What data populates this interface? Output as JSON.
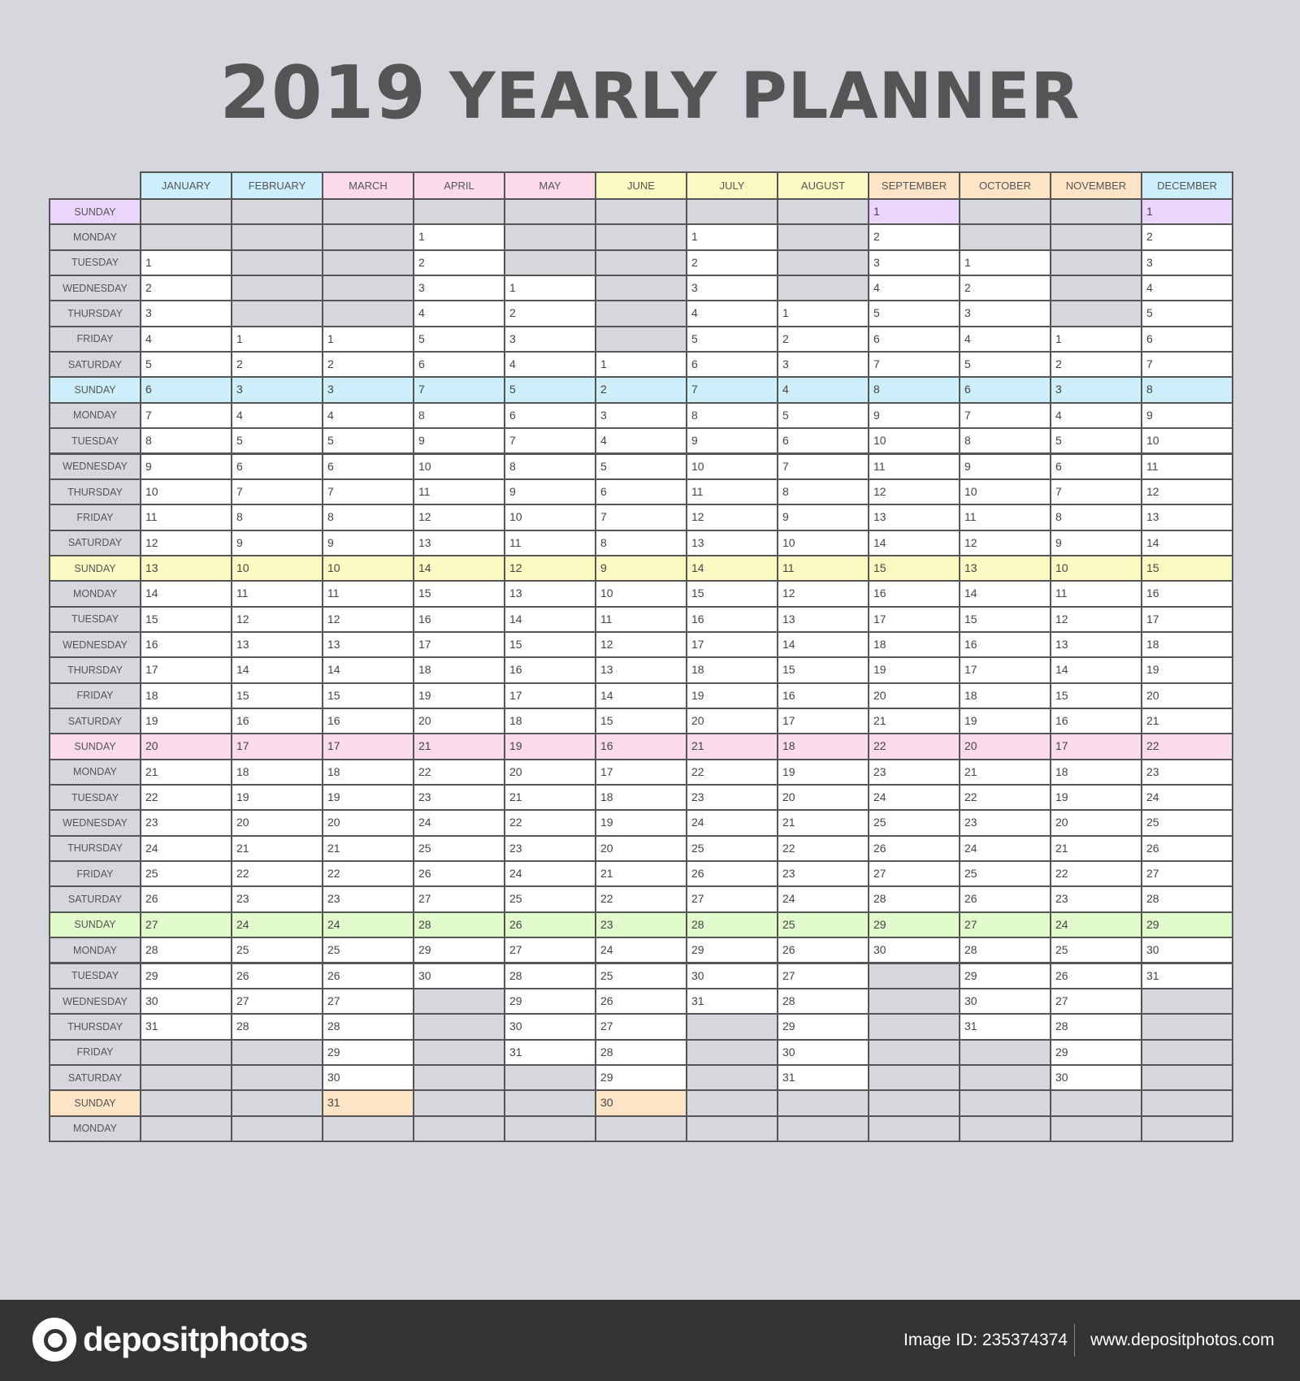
{
  "title": {
    "year": "2019",
    "text": "YEARLY PLANNER"
  },
  "weekdays": [
    "SUNDAY",
    "MONDAY",
    "TUESDAY",
    "WEDNESDAY",
    "THURSDAY",
    "FRIDAY",
    "SATURDAY"
  ],
  "row_count": 37,
  "colors": {
    "empty_cell": "#d6d7dc",
    "day_cell": "#ffffff",
    "border": "#555555",
    "sunday_rows": [
      "#ead6fb",
      "#cdeffb",
      "#fbfac2",
      "#fbdbeb",
      "#e2fbcc",
      "#fde4c6"
    ]
  },
  "months": [
    {
      "name": "JANUARY",
      "start_weekday": 2,
      "days": 31,
      "color": "#cdeffb"
    },
    {
      "name": "FEBRUARY",
      "start_weekday": 5,
      "days": 28,
      "color": "#cdeffb"
    },
    {
      "name": "MARCH",
      "start_weekday": 5,
      "days": 31,
      "color": "#fbdbeb"
    },
    {
      "name": "APRIL",
      "start_weekday": 1,
      "days": 30,
      "color": "#fbdbeb"
    },
    {
      "name": "MAY",
      "start_weekday": 3,
      "days": 31,
      "color": "#fbdbeb"
    },
    {
      "name": "JUNE",
      "start_weekday": 6,
      "days": 30,
      "color": "#fbfac2"
    },
    {
      "name": "JULY",
      "start_weekday": 1,
      "days": 31,
      "color": "#fbfac2"
    },
    {
      "name": "AUGUST",
      "start_weekday": 4,
      "days": 31,
      "color": "#fbfac2"
    },
    {
      "name": "SEPTEMBER",
      "start_weekday": 0,
      "days": 30,
      "color": "#fde4c6"
    },
    {
      "name": "OCTOBER",
      "start_weekday": 2,
      "days": 31,
      "color": "#fde4c6"
    },
    {
      "name": "NOVEMBER",
      "start_weekday": 5,
      "days": 30,
      "color": "#fde4c6"
    },
    {
      "name": "DECEMBER",
      "start_weekday": 0,
      "days": 31,
      "color": "#cdeffb"
    }
  ],
  "footer": {
    "logo": "depositphotos",
    "image_id": "Image ID: 235374374",
    "site": "www.depositphotos.com"
  }
}
